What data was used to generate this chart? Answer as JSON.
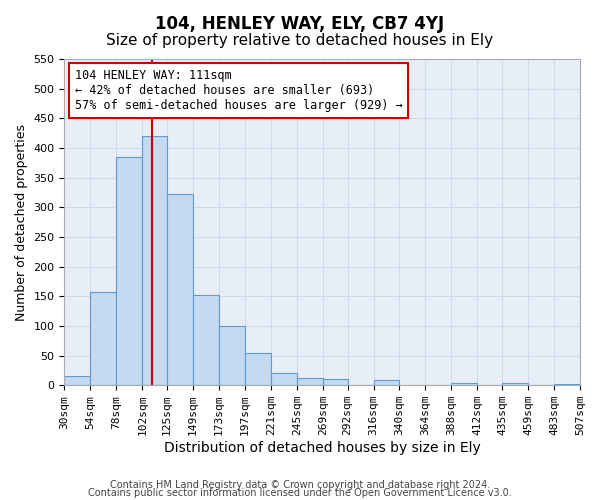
{
  "title": "104, HENLEY WAY, ELY, CB7 4YJ",
  "subtitle": "Size of property relative to detached houses in Ely",
  "xlabel": "Distribution of detached houses by size in Ely",
  "ylabel": "Number of detached properties",
  "footer_line1": "Contains HM Land Registry data © Crown copyright and database right 2024.",
  "footer_line2": "Contains public sector information licensed under the Open Government Licence v3.0.",
  "annotation_line1": "104 HENLEY WAY: 111sqm",
  "annotation_line2": "← 42% of detached houses are smaller (693)",
  "annotation_line3": "57% of semi-detached houses are larger (929) →",
  "property_line_x": 111,
  "bar_edges": [
    30,
    54,
    78,
    102,
    125,
    149,
    173,
    197,
    221,
    245,
    269,
    292,
    316,
    340,
    364,
    388,
    412,
    435,
    459,
    483,
    507
  ],
  "bar_heights": [
    15,
    157,
    385,
    420,
    323,
    152,
    100,
    55,
    20,
    13,
    10,
    0,
    8,
    0,
    0,
    3,
    0,
    3,
    0,
    2
  ],
  "bar_color": "#c5d9f0",
  "bar_edge_color": "#5b9bd5",
  "bar_linewidth": 0.8,
  "vline_color": "#cc0000",
  "vline_linewidth": 1.5,
  "ylim": [
    0,
    550
  ],
  "yticks": [
    0,
    50,
    100,
    150,
    200,
    250,
    300,
    350,
    400,
    450,
    500,
    550
  ],
  "grid_color": "#d0d8e8",
  "bg_color": "#e8eef8",
  "annotation_box_color": "#ffffff",
  "annotation_border_color": "#cc0000",
  "title_fontsize": 12,
  "subtitle_fontsize": 11,
  "xlabel_fontsize": 10,
  "ylabel_fontsize": 9,
  "tick_fontsize": 8,
  "annotation_fontsize": 8.5,
  "footer_fontsize": 7
}
